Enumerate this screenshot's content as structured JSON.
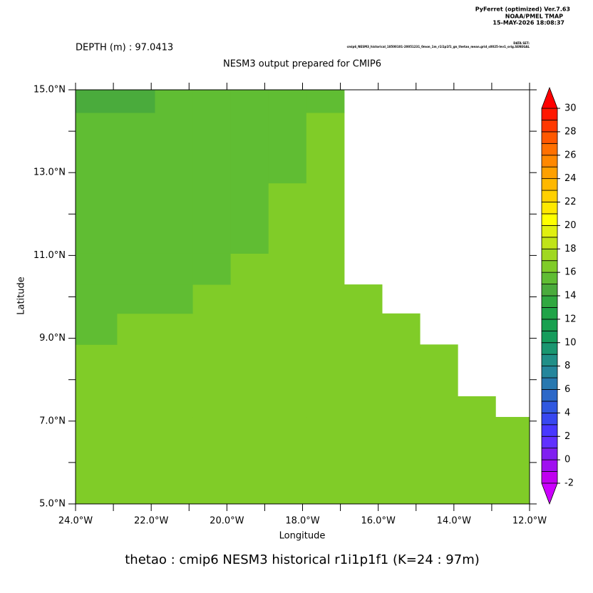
{
  "chart_data": {
    "type": "heatmap",
    "credit": [
      "PyFerret (optimized) Ver.7.63",
      "NOAA/PMEL TMAP",
      "15-MAY-2026 18:08:37"
    ],
    "dataset_label": "DATA SET:",
    "dataset": "cmip6_NESM3_historical_18500101-20051231_0mon_1m_r1i1p1f1_gn_thetao_mean.grid_s0025-lev1_orig.SENEGAL",
    "depth": "DEPTH (m) : 97.0413",
    "title": "NESM3 output prepared for CMIP6",
    "xlabel": "Longitude",
    "ylabel": "Latitude",
    "footer": "thetao : cmip6 NESM3 historical r1i1p1f1   (K=24 : 97m)",
    "xlim": [
      -24,
      -12
    ],
    "ylim": [
      5,
      15
    ],
    "xticks": [
      {
        "value": -24,
        "label": "24.0°W"
      },
      {
        "value": -22,
        "label": "22.0°W"
      },
      {
        "value": -20,
        "label": "20.0°W"
      },
      {
        "value": -18,
        "label": "18.0°W"
      },
      {
        "value": -16,
        "label": "16.0°W"
      },
      {
        "value": -14,
        "label": "14.0°W"
      },
      {
        "value": -12,
        "label": "12.0°W"
      }
    ],
    "yticks": [
      {
        "value": 5,
        "label": "5.0°N"
      },
      {
        "value": 7,
        "label": "7.0°N"
      },
      {
        "value": 9,
        "label": "9.0°N"
      },
      {
        "value": 11,
        "label": "11.0°N"
      },
      {
        "value": 13,
        "label": "13.0°N"
      },
      {
        "value": 15,
        "label": "15.0°N"
      }
    ],
    "xminorticks": [
      -23,
      -21,
      -19,
      -17,
      -15,
      -13
    ],
    "yminorticks": [
      6,
      8,
      10,
      12,
      14
    ],
    "x_edges": [
      -24,
      -22.9,
      -21.9,
      -20.9,
      -19.9,
      -18.9,
      -17.9,
      -16.9,
      -15.9,
      -14.9,
      -13.9,
      -12.9,
      -12
    ],
    "y_edges": [
      5,
      7.1,
      7.6,
      8.85,
      9.6,
      10.3,
      11.05,
      12.75,
      14.45,
      15
    ],
    "z": [
      [
        16.5,
        16.5,
        16.5,
        16.5,
        16.5,
        16.5,
        16.5,
        16.5,
        16.5,
        16.5,
        16.5,
        16.5
      ],
      [
        16.5,
        16.5,
        16.5,
        16.5,
        16.5,
        16.5,
        16.5,
        16.5,
        16.5,
        16.5,
        16.5,
        null
      ],
      [
        16.5,
        16.5,
        16.5,
        16.5,
        16.5,
        16.5,
        16.5,
        16.5,
        16.5,
        16.5,
        null,
        null
      ],
      [
        15.5,
        16.5,
        16.5,
        16.5,
        16.5,
        16.5,
        16.5,
        16.5,
        16.5,
        null,
        null,
        null
      ],
      [
        15.5,
        15.5,
        15.5,
        16.5,
        16.5,
        16.5,
        16.5,
        16.5,
        null,
        null,
        null,
        null
      ],
      [
        15.5,
        15.5,
        15.5,
        15.5,
        16.5,
        16.5,
        16.5,
        null,
        null,
        null,
        null,
        null
      ],
      [
        15.5,
        15.5,
        15.5,
        15.5,
        15.5,
        16.5,
        16.5,
        null,
        null,
        null,
        null,
        null
      ],
      [
        15.5,
        15.5,
        15.5,
        15.5,
        15.5,
        15.5,
        16.5,
        null,
        null,
        null,
        null,
        null
      ],
      [
        14.5,
        14.5,
        15.5,
        15.5,
        15.5,
        15.5,
        15.5,
        null,
        null,
        null,
        null,
        null
      ]
    ],
    "clim": [
      -2,
      30
    ],
    "colors": [
      "#c000f0",
      "#a010f0",
      "#8020f0",
      "#6030ff",
      "#4838ff",
      "#3848f0",
      "#3058e0",
      "#2c68c8",
      "#2878b0",
      "#24869c",
      "#208f88",
      "#1a9670",
      "#169c5c",
      "#18a050",
      "#20a448",
      "#30a840",
      "#4aab3c",
      "#60bd33",
      "#80cc28",
      "#a0d820",
      "#c0e418",
      "#e0f010",
      "#ffff00",
      "#ffe800",
      "#ffd000",
      "#ffb800",
      "#ffa000",
      "#ff8800",
      "#ff7000",
      "#ff5800",
      "#ff3800",
      "#ff1800"
    ],
    "below_color": "#cc00ff",
    "above_color": "#ff0000",
    "cticks": [
      -2,
      0,
      2,
      4,
      6,
      8,
      10,
      12,
      14,
      16,
      18,
      20,
      22,
      24,
      26,
      28,
      30
    ]
  }
}
